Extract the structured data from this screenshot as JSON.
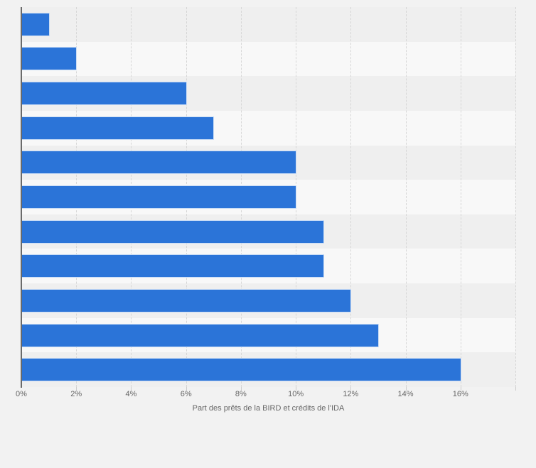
{
  "chart_data": {
    "type": "bar",
    "orientation": "horizontal",
    "title": "",
    "xlabel": "Part des prêts de la BIRD et crédits de l'IDA",
    "ylabel": "",
    "unit": "%",
    "categories": [
      "",
      "",
      "",
      "",
      "",
      "",
      "",
      "",
      "",
      "",
      ""
    ],
    "values": [
      1,
      2,
      6,
      7,
      10,
      10,
      11,
      11,
      12,
      13,
      16
    ],
    "xlim": [
      0,
      18
    ],
    "x_tick_step": 2,
    "x_tick_labels": [
      "0%",
      "2%",
      "4%",
      "6%",
      "8%",
      "10%",
      "12%",
      "14%",
      "16%"
    ],
    "grid": true,
    "grid_style": "dashed",
    "legend": false,
    "category_labels_visible": false,
    "colors": {
      "bar": "#2b74d8",
      "bar_border": "#ffffff",
      "background": "#f2f2f2",
      "band_gray": "#efefef",
      "band_light": "#f8f8f8",
      "gridline": "#d6d6d6",
      "axis_line": "#6a6a6a",
      "tick_label": "#666666",
      "axis_title": "#666666"
    }
  }
}
